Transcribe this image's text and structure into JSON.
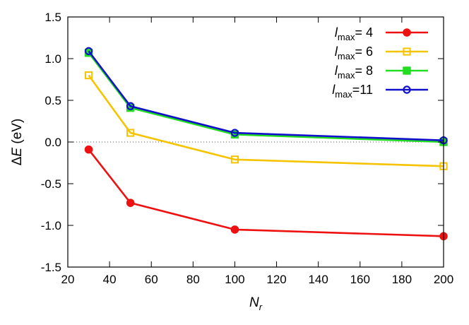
{
  "chart_data": {
    "type": "line",
    "xlabel": "N_r",
    "ylabel": "ΔE (eV)",
    "xlim": [
      20,
      200
    ],
    "ylim": [
      -1.5,
      1.5
    ],
    "xticks": [
      20,
      40,
      60,
      80,
      100,
      120,
      140,
      160,
      180,
      200
    ],
    "yticks": [
      -1.5,
      -1.0,
      -0.5,
      0.0,
      0.5,
      1.0,
      1.5
    ],
    "xtick_labels": [
      "20",
      "40",
      "60",
      "80",
      "100",
      "120",
      "140",
      "160",
      "180",
      "200"
    ],
    "ytick_labels": [
      "-1.5",
      "-1.0",
      "-0.5",
      "0.0",
      "0.5",
      "1.0",
      "1.5"
    ],
    "zero_line": true,
    "grid": false,
    "legend_position": "top-right",
    "x": [
      30,
      50,
      100,
      200
    ],
    "series": [
      {
        "name": "l_max= 4",
        "sub": "max",
        "pre": "l",
        "post": "= 4",
        "marker": "filled-circle",
        "color": "#ee1111",
        "values": [
          -0.09,
          -0.73,
          -1.05,
          -1.13
        ]
      },
      {
        "name": "l_max= 6",
        "sub": "max",
        "pre": "l",
        "post": "= 6",
        "marker": "open-square",
        "color": "#f5c400",
        "values": [
          0.8,
          0.11,
          -0.21,
          -0.29
        ]
      },
      {
        "name": "l_max= 8",
        "sub": "max",
        "pre": "l",
        "post": "= 8",
        "marker": "filled-square",
        "color": "#22dd22",
        "values": [
          1.07,
          0.41,
          0.09,
          0.0
        ]
      },
      {
        "name": "l_max=11",
        "sub": "max",
        "pre": "l",
        "post": "=11",
        "marker": "open-circle",
        "color": "#1111cc",
        "values": [
          1.09,
          0.43,
          0.11,
          0.02
        ]
      }
    ]
  }
}
